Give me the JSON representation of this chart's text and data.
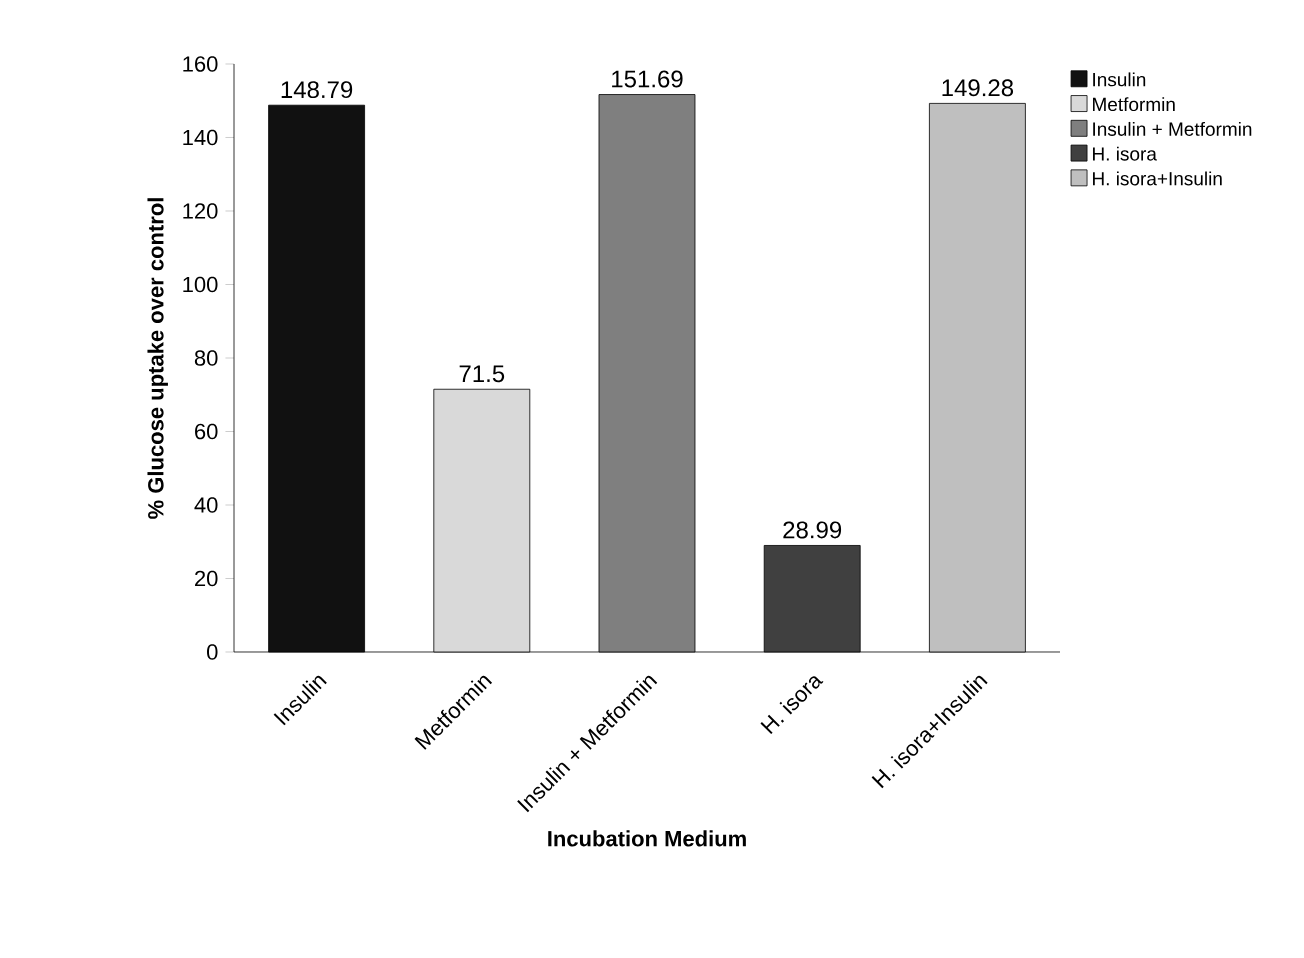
{
  "chart_data": {
    "type": "bar",
    "xlabel": "Incubation Medium",
    "ylabel": "% Glucose uptake over control",
    "categories": [
      "Insulin",
      "Metformin",
      "Insulin + Metformin",
      "H. isora",
      "H. isora+Insulin"
    ],
    "series": [
      {
        "name": "Insulin",
        "color": "#111111",
        "values": [
          148.79,
          null,
          null,
          null,
          null
        ]
      },
      {
        "name": "Metformin",
        "color": "#d9d9d9",
        "values": [
          null,
          71.5,
          null,
          null,
          null
        ]
      },
      {
        "name": "Insulin + Metformin",
        "color": "#7f7f7f",
        "values": [
          null,
          null,
          151.69,
          null,
          null
        ]
      },
      {
        "name": "H. isora",
        "color": "#404040",
        "values": [
          null,
          null,
          null,
          28.99,
          null
        ]
      },
      {
        "name": "H. isora+Insulin",
        "color": "#bfbfbf",
        "values": [
          null,
          null,
          null,
          null,
          149.28
        ]
      }
    ],
    "ylim": [
      0,
      160
    ],
    "yticks": [
      0,
      20,
      40,
      60,
      80,
      100,
      120,
      140,
      160
    ],
    "data_labels": true,
    "legend": "top right"
  }
}
